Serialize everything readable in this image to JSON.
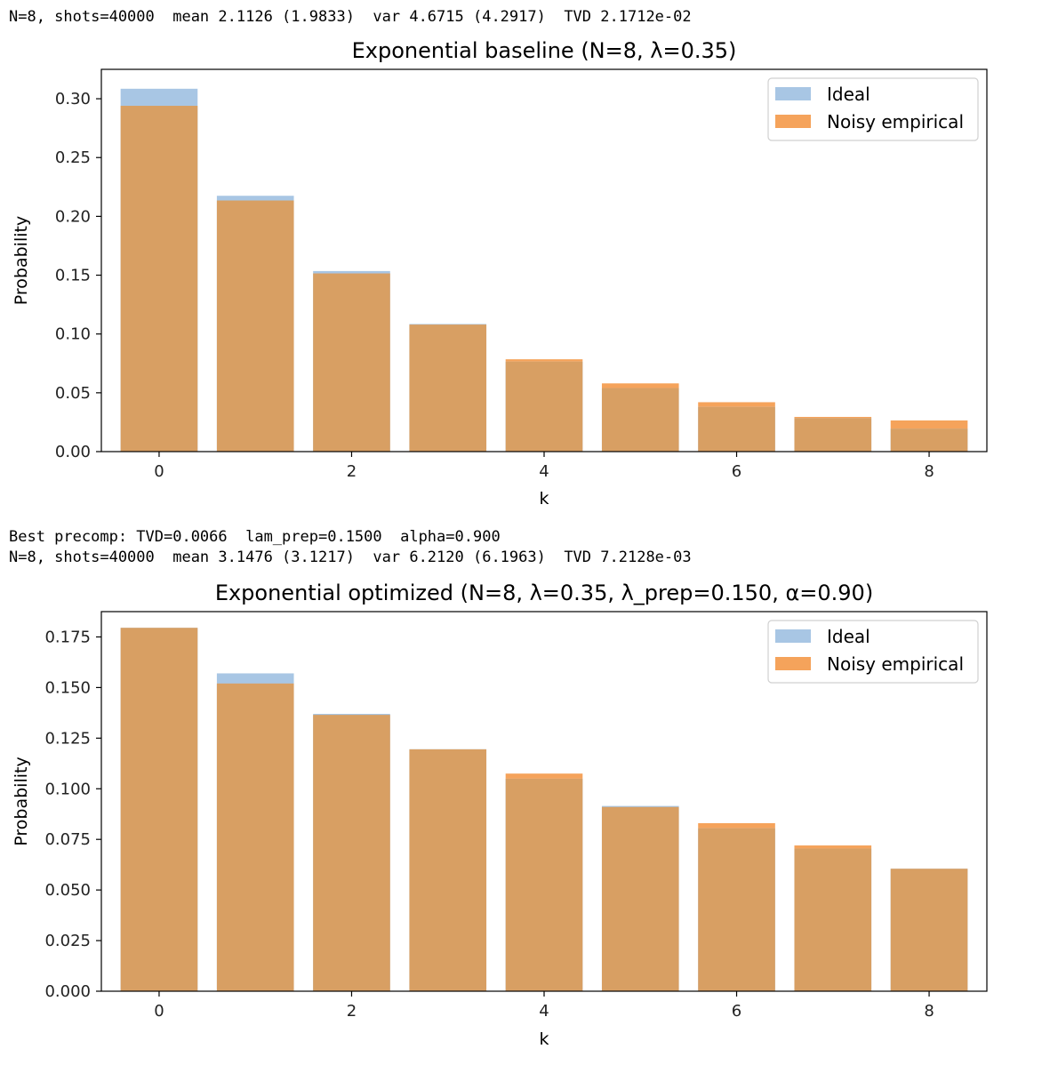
{
  "output": {
    "line1": "N=8, shots=40000  mean 2.1126 (1.9833)  var 4.6715 (4.2917)  TVD 2.1712e-02",
    "line2": "Best precomp: TVD=0.0066  lam_prep=0.1500  alpha=0.900",
    "line3": "N=8, shots=40000  mean 3.1476 (3.1217)  var 6.2120 (6.1963)  TVD 7.2128e-03"
  },
  "colors": {
    "ideal": "#a8c6e4",
    "noisy": "#f5a35b",
    "overlap": "#d89f63"
  },
  "chart_data": [
    {
      "type": "bar",
      "title": "Exponential baseline (N=8, λ=0.35)",
      "xlabel": "k",
      "ylabel": "Probability",
      "categories": [
        0,
        1,
        2,
        3,
        4,
        5,
        6,
        7,
        8
      ],
      "xticks": [
        "0",
        "2",
        "4",
        "6",
        "8"
      ],
      "yticks": [
        "0.00",
        "0.05",
        "0.10",
        "0.15",
        "0.20",
        "0.25",
        "0.30"
      ],
      "ylim": [
        0,
        0.325
      ],
      "legend_position": "top-right",
      "grid": false,
      "series": [
        {
          "name": "Ideal",
          "values": [
            0.3085,
            0.2175,
            0.1535,
            0.1085,
            0.0765,
            0.054,
            0.038,
            0.0285,
            0.0195
          ]
        },
        {
          "name": "Noisy empirical",
          "values": [
            0.294,
            0.2135,
            0.1515,
            0.108,
            0.0785,
            0.058,
            0.042,
            0.0295,
            0.0265
          ]
        }
      ]
    },
    {
      "type": "bar",
      "title": "Exponential optimized (N=8, λ=0.35, λ_prep=0.150, α=0.90)",
      "xlabel": "k",
      "ylabel": "Probability",
      "categories": [
        0,
        1,
        2,
        3,
        4,
        5,
        6,
        7,
        8
      ],
      "xticks": [
        "0",
        "2",
        "4",
        "6",
        "8"
      ],
      "yticks": [
        "0.000",
        "0.025",
        "0.050",
        "0.075",
        "0.100",
        "0.125",
        "0.150",
        "0.175"
      ],
      "ylim": [
        0,
        0.1875
      ],
      "legend_position": "top-right",
      "grid": false,
      "series": [
        {
          "name": "Ideal",
          "values": [
            0.1795,
            0.157,
            0.137,
            0.1195,
            0.105,
            0.0915,
            0.0805,
            0.0705,
            0.0605
          ]
        },
        {
          "name": "Noisy empirical",
          "values": [
            0.1795,
            0.152,
            0.1365,
            0.1195,
            0.1075,
            0.091,
            0.083,
            0.072,
            0.0605
          ]
        }
      ]
    }
  ]
}
